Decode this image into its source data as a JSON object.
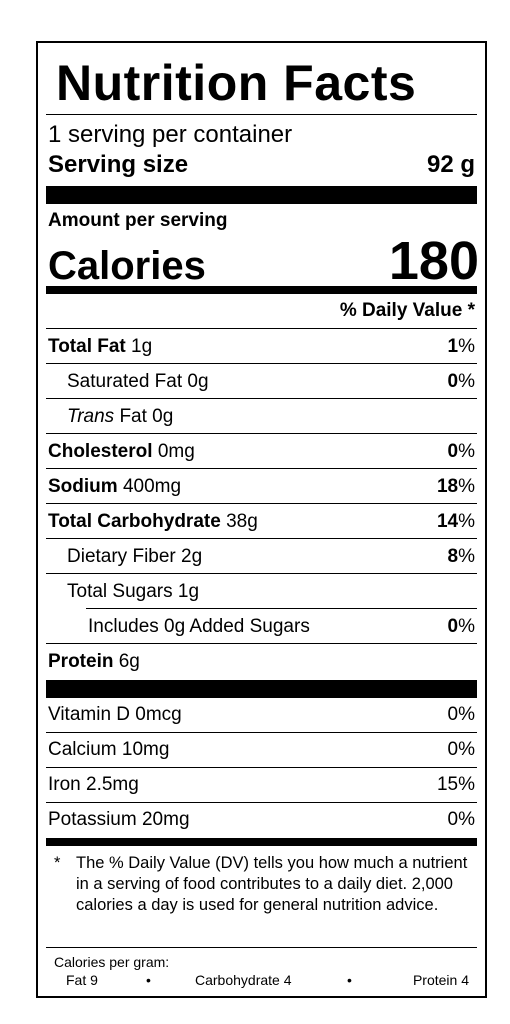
{
  "title": "Nutrition Facts",
  "servings": {
    "per_container": "1 serving per container",
    "size_label": "Serving size",
    "size_value": "92 g"
  },
  "amount_per_serving": "Amount per serving",
  "calories": {
    "label": "Calories",
    "value": "180"
  },
  "daily_value_header": "% Daily Value *",
  "nutrients": {
    "total_fat": {
      "name": "Total Fat",
      "amount": "1g",
      "dv_num": "1",
      "dv_pct": "%"
    },
    "saturated_fat": {
      "name": "Saturated Fat 0g",
      "dv_num": "0",
      "dv_pct": "%"
    },
    "trans_fat": {
      "name_italic": "Trans",
      "name_rest": " Fat 0g"
    },
    "cholesterol": {
      "name": "Cholesterol",
      "amount": "0mg",
      "dv_num": "0",
      "dv_pct": "%"
    },
    "sodium": {
      "name": "Sodium",
      "amount": "400mg",
      "dv_num": "18",
      "dv_pct": "%"
    },
    "total_carbohydrate": {
      "name": "Total Carbohydrate",
      "amount": "38g",
      "dv_num": "14",
      "dv_pct": "%"
    },
    "dietary_fiber": {
      "name": "Dietary Fiber 2g",
      "dv_num": "8",
      "dv_pct": "%"
    },
    "total_sugars": {
      "name": "Total Sugars 1g"
    },
    "added_sugars": {
      "name": "Includes 0g Added Sugars",
      "dv_num": "0",
      "dv_pct": "%"
    },
    "protein": {
      "name": "Protein",
      "amount": "6g"
    }
  },
  "vitamins": [
    {
      "name": "Vitamin D 0mcg",
      "dv": "0%"
    },
    {
      "name": "Calcium 10mg",
      "dv": "0%"
    },
    {
      "name": "Iron 2.5mg",
      "dv": "15%"
    },
    {
      "name": "Potassium 20mg",
      "dv": "0%"
    }
  ],
  "footnote": {
    "star": "*",
    "text": "The % Daily Value (DV) tells you how much a nutrient in a serving of food contributes to a daily diet. 2,000 calories a day is used for general nutrition advice."
  },
  "calories_per_gram": {
    "label": "Calories per gram:",
    "fat": "Fat 9",
    "bullet": "•",
    "carbohydrate": "Carbohydrate 4",
    "protein": "Protein 4"
  }
}
